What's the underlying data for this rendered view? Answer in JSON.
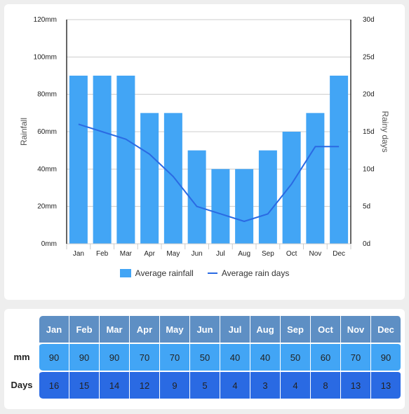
{
  "chart_data": {
    "type": "bar+line",
    "categories": [
      "Jan",
      "Feb",
      "Mar",
      "Apr",
      "May",
      "Jun",
      "Jul",
      "Aug",
      "Sep",
      "Oct",
      "Nov",
      "Dec"
    ],
    "series": [
      {
        "name": "Average rainfall",
        "type": "bar",
        "axis": "left",
        "values": [
          90,
          90,
          90,
          70,
          70,
          50,
          40,
          40,
          50,
          60,
          70,
          90
        ],
        "color": "#42a5f5"
      },
      {
        "name": "Average rain days",
        "type": "line",
        "axis": "right",
        "values": [
          16,
          15,
          14,
          12,
          9,
          5,
          4,
          3,
          4,
          8,
          13,
          13
        ],
        "color": "#2a6ae3"
      }
    ],
    "ylabel": "Rainfall",
    "y2label": "Rainy days",
    "ylim": [
      0,
      120
    ],
    "y2lim": [
      0,
      30
    ],
    "yticks": [
      "0mm",
      "20mm",
      "40mm",
      "60mm",
      "80mm",
      "100mm",
      "120mm"
    ],
    "y2ticks": [
      "0d",
      "5d",
      "10d",
      "15d",
      "20d",
      "25d",
      "30d"
    ],
    "legend_position": "bottom",
    "grid": true
  },
  "legend": {
    "rainfall": "Average rainfall",
    "days": "Average rain days"
  },
  "table": {
    "months": [
      "Jan",
      "Feb",
      "Mar",
      "Apr",
      "May",
      "Jun",
      "Jul",
      "Aug",
      "Sep",
      "Oct",
      "Nov",
      "Dec"
    ],
    "mm_label": "mm",
    "days_label": "Days",
    "mm": [
      "90",
      "90",
      "90",
      "70",
      "70",
      "50",
      "40",
      "40",
      "50",
      "60",
      "70",
      "90"
    ],
    "days": [
      "16",
      "15",
      "14",
      "12",
      "9",
      "5",
      "4",
      "3",
      "4",
      "8",
      "13",
      "13"
    ]
  }
}
